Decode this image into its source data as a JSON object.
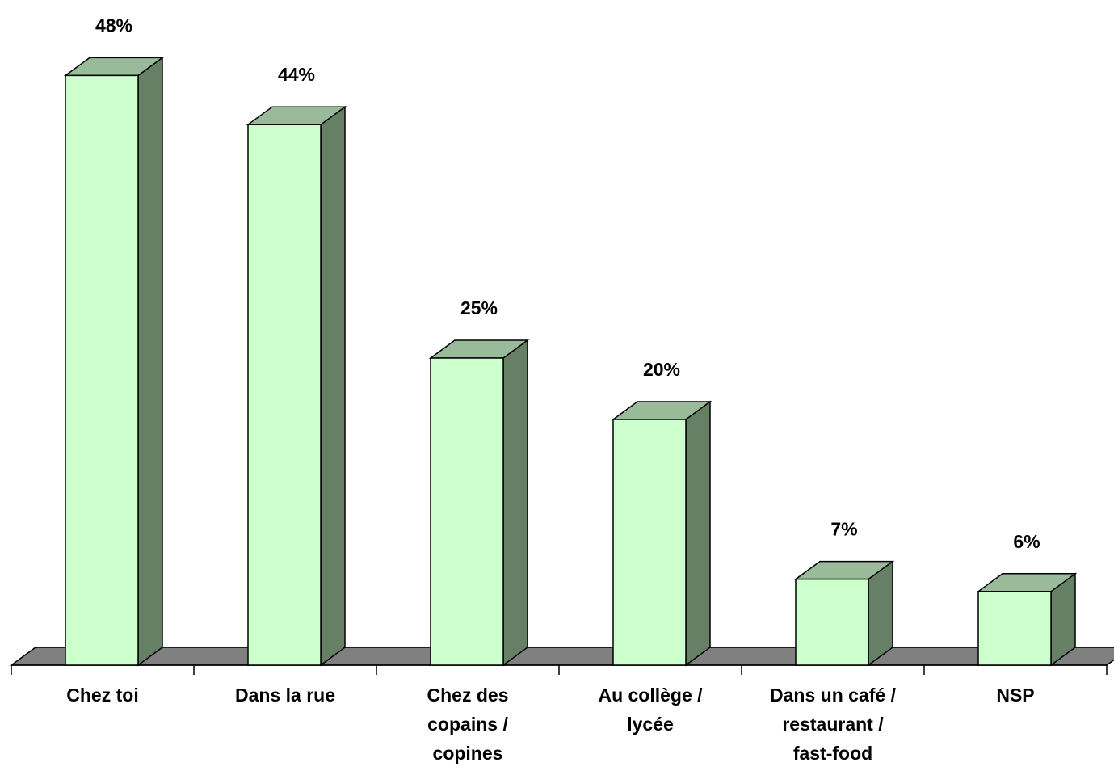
{
  "chart_data": {
    "type": "bar",
    "categories": [
      [
        "Chez toi"
      ],
      [
        "Dans la rue"
      ],
      [
        "Chez des",
        "copains /",
        "copines"
      ],
      [
        "Au collège /",
        "lycée"
      ],
      [
        "Dans un café /",
        "restaurant /",
        "fast-food"
      ],
      [
        "NSP"
      ]
    ],
    "values": [
      48,
      44,
      25,
      20,
      7,
      6
    ],
    "value_labels": [
      "48%",
      "44%",
      "25%",
      "20%",
      "7%",
      "6%"
    ],
    "unit": "%",
    "three_d": true,
    "grid": false,
    "legend": "none"
  },
  "colors": {
    "bar_front": "#ccffcc",
    "bar_top": "#99bb99",
    "bar_side": "#668066",
    "floor": "#808080",
    "outline": "#000000"
  }
}
